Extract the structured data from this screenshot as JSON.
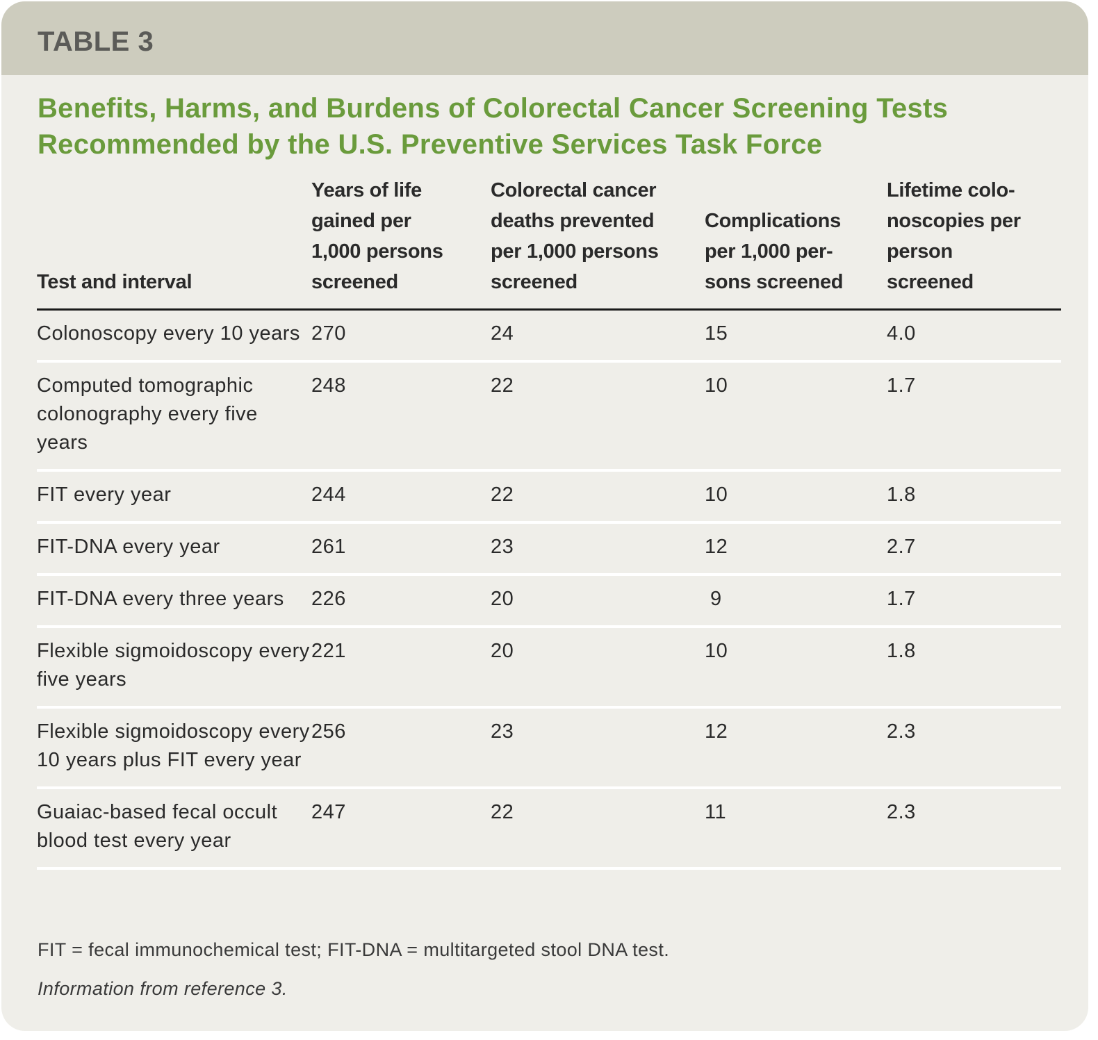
{
  "label": "TABLE 3",
  "title": "Benefits, Harms, and Burdens of Colorectal Cancer Screening Tests Recommended by the U.S. Preventive Services Task Force",
  "headers": [
    "Test and interval",
    "Years of life gained per 1,000 persons screened",
    "Colorectal cancer deaths prevented per 1,000 per­sons screened",
    "Complications per 1,000 per­sons screened",
    "Lifetime colo­noscopies per person screened"
  ],
  "rows": [
    [
      "Colonoscopy every 10 years",
      "270",
      "24",
      "15",
      "4.0"
    ],
    [
      "Computed tomographic colonography every five years",
      "248",
      "22",
      "10",
      "1.7"
    ],
    [
      "FIT every year",
      "244",
      "22",
      "10",
      "1.8"
    ],
    [
      "FIT-DNA every year",
      "261",
      "23",
      "12",
      "2.7"
    ],
    [
      "FIT-DNA every three years",
      "226",
      "20",
      " 9",
      "1.7"
    ],
    [
      "Flexible sigmoidoscopy every five years",
      "221",
      "20",
      "10",
      "1.8"
    ],
    [
      "Flexible sigmoidoscopy every 10 years plus FIT every year",
      "256",
      "23",
      "12",
      "2.3"
    ],
    [
      "Guaiac-based fecal occult blood test every year",
      "247",
      "22",
      "11",
      "2.3"
    ]
  ],
  "footnote": "FIT = fecal immunochemical test; FIT-DNA = multitargeted stool DNA test.",
  "source": "Information from reference 3."
}
